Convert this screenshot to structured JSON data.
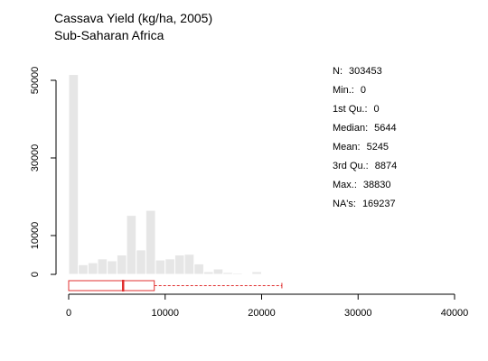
{
  "title": "Cassava Yield (kg/ha, 2005)",
  "subtitle": "Sub-Saharan Africa",
  "stats": [
    {
      "label": "N:",
      "value": "303453"
    },
    {
      "label": "Min.:",
      "value": "0"
    },
    {
      "label": "1st Qu.:",
      "value": "0"
    },
    {
      "label": "Median:",
      "value": "5644"
    },
    {
      "label": "Mean:",
      "value": "5245"
    },
    {
      "label": "3rd Qu.:",
      "value": "8874"
    },
    {
      "label": "Max.:",
      "value": "38830"
    },
    {
      "label": "NA's:",
      "value": "169237"
    }
  ],
  "chart_data": {
    "type": "histogram",
    "title": "Cassava Yield (kg/ha, 2005)",
    "subtitle": "Sub-Saharan Africa",
    "xlabel": "",
    "ylabel": "",
    "xlim": [
      0,
      40000
    ],
    "ylim": [
      0,
      55000
    ],
    "xticks": [
      0,
      10000,
      20000,
      30000,
      40000
    ],
    "yticks": [
      0,
      10000,
      30000,
      50000
    ],
    "bin_width": 1000,
    "bins": [
      {
        "x0": 0,
        "x1": 1000,
        "count": 51500
      },
      {
        "x0": 1000,
        "x1": 2000,
        "count": 2500
      },
      {
        "x0": 2000,
        "x1": 3000,
        "count": 3000
      },
      {
        "x0": 3000,
        "x1": 4000,
        "count": 4000
      },
      {
        "x0": 4000,
        "x1": 5000,
        "count": 3500
      },
      {
        "x0": 5000,
        "x1": 6000,
        "count": 5000
      },
      {
        "x0": 6000,
        "x1": 7000,
        "count": 15200
      },
      {
        "x0": 7000,
        "x1": 8000,
        "count": 6300
      },
      {
        "x0": 8000,
        "x1": 9000,
        "count": 16500
      },
      {
        "x0": 9000,
        "x1": 10000,
        "count": 3700
      },
      {
        "x0": 10000,
        "x1": 11000,
        "count": 4000
      },
      {
        "x0": 11000,
        "x1": 12000,
        "count": 5000
      },
      {
        "x0": 12000,
        "x1": 13000,
        "count": 5200
      },
      {
        "x0": 13000,
        "x1": 14000,
        "count": 2700
      },
      {
        "x0": 14000,
        "x1": 15000,
        "count": 700
      },
      {
        "x0": 15000,
        "x1": 16000,
        "count": 1400
      },
      {
        "x0": 16000,
        "x1": 17000,
        "count": 500
      },
      {
        "x0": 17000,
        "x1": 18000,
        "count": 350
      },
      {
        "x0": 18000,
        "x1": 19000,
        "count": 200
      },
      {
        "x0": 19000,
        "x1": 20000,
        "count": 700
      },
      {
        "x0": 20000,
        "x1": 21000,
        "count": 150
      },
      {
        "x0": 21000,
        "x1": 22000,
        "count": 80
      },
      {
        "x0": 32000,
        "x1": 33000,
        "count": 150
      }
    ],
    "boxplot": {
      "whisker_low": 0,
      "q1": 0,
      "median": 5644,
      "q3": 8874,
      "whisker_high": 22100,
      "color": "#e03030"
    },
    "bar_color": "#e6e6e6",
    "grid": false
  }
}
